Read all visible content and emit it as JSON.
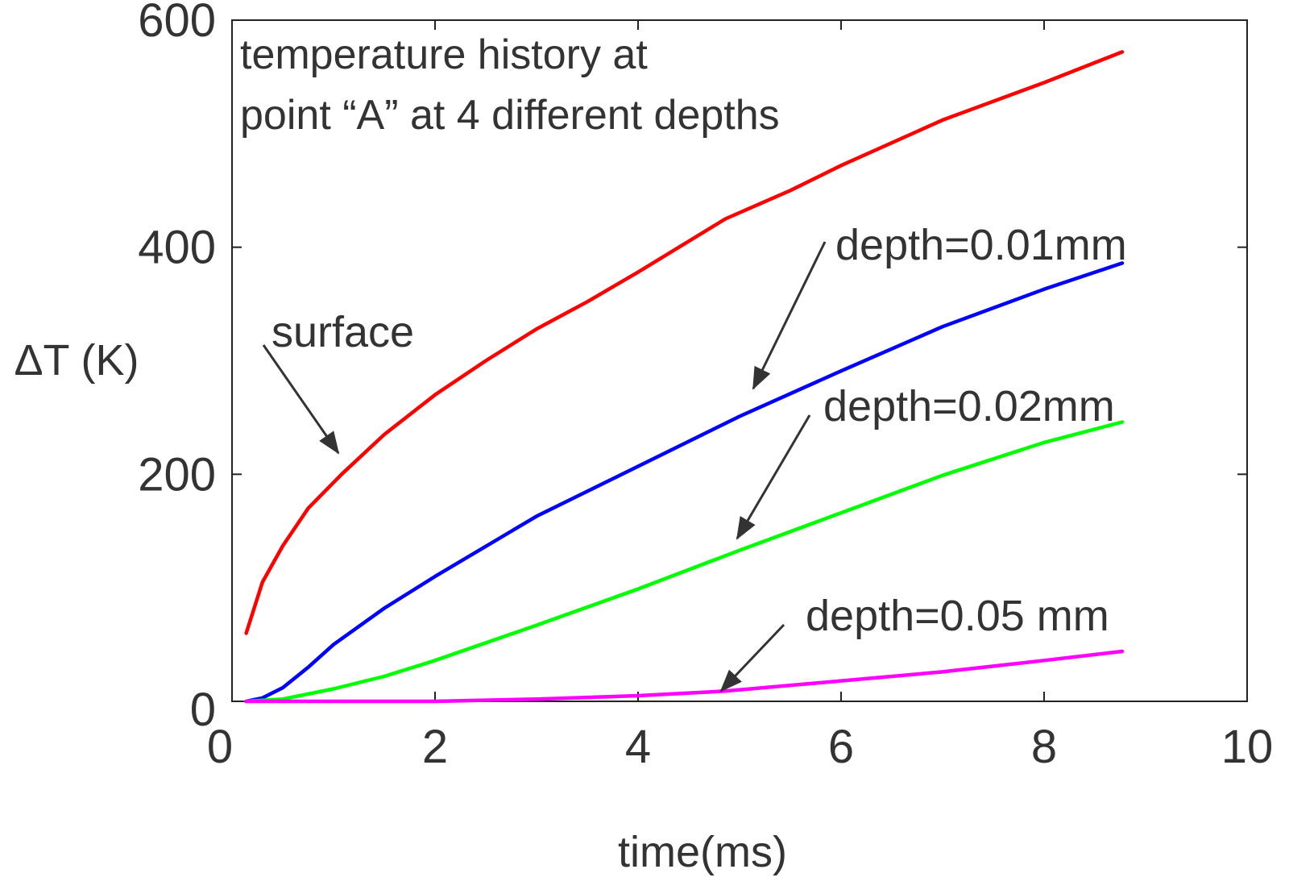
{
  "chart_data": {
    "type": "line",
    "title": "",
    "xlabel": "time(ms)",
    "ylabel": "ΔT (K)",
    "xlim": [
      0,
      10
    ],
    "ylim": [
      0,
      600
    ],
    "xticks": [
      "0",
      "2",
      "4",
      "6",
      "8",
      "10"
    ],
    "yticks": [
      "0",
      "200",
      "400",
      "600"
    ],
    "grid": false,
    "annotation_title": [
      "temperature history at",
      "point “A” at 4 different depths"
    ],
    "series": [
      {
        "name": "surface",
        "color": "#ff0000",
        "x": [
          0.14,
          0.3,
          0.5,
          0.75,
          1.08,
          1.5,
          2,
          2.5,
          3,
          3.5,
          4,
          4.86,
          5.5,
          6,
          7,
          8,
          8.77
        ],
        "y": [
          60,
          105,
          137,
          170,
          200,
          235,
          270,
          300,
          328,
          352,
          378,
          425,
          450,
          472,
          512,
          545,
          572
        ]
      },
      {
        "name": "depth=0.01mm",
        "color": "#0000ff",
        "x": [
          0.14,
          0.3,
          0.5,
          0.75,
          1,
          1.5,
          2,
          3,
          4,
          5,
          6,
          7,
          8,
          8.77
        ],
        "y": [
          0,
          3,
          12,
          30,
          50,
          82,
          110,
          163,
          207,
          251,
          291,
          330,
          363,
          386
        ]
      },
      {
        "name": "depth=0.02mm",
        "color": "#00ff00",
        "x": [
          0.14,
          0.5,
          1,
          1.5,
          2,
          3,
          4,
          5,
          6,
          7,
          8,
          8.77
        ],
        "y": [
          0,
          2,
          11,
          22,
          36,
          67,
          99,
          133,
          166,
          199,
          228,
          246
        ]
      },
      {
        "name": "depth=0.05 mm",
        "color": "#ff00ff",
        "x": [
          0.14,
          1,
          2,
          3,
          4,
          4.86,
          6,
          7,
          8,
          8.77
        ],
        "y": [
          0,
          0,
          0,
          2,
          5,
          9,
          18,
          26,
          36,
          44
        ]
      }
    ]
  }
}
